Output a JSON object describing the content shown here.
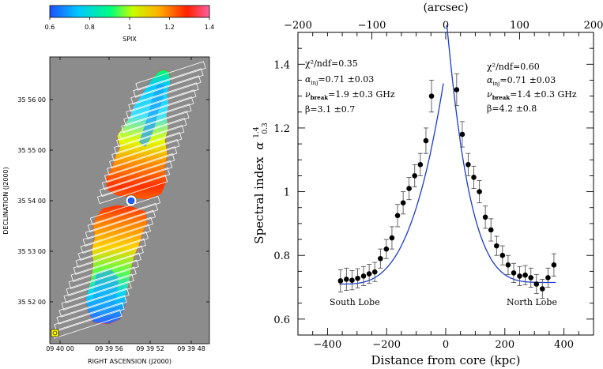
{
  "chart_data": [
    {
      "type": "heatmap",
      "colorbar": {
        "label": "SPIX",
        "ticks": [
          "0.6",
          "0.8",
          "1",
          "1.2",
          "1.4"
        ],
        "range": [
          0.6,
          1.4
        ],
        "colors": [
          "#1e50ff",
          "#00c8ff",
          "#00ff80",
          "#c8ff00",
          "#ffb000",
          "#ff2000",
          "#ff60a0"
        ]
      },
      "ylabel": "DECLINATION  (J2000)",
      "xlabel": "RIGHT ASCENSION  (J2000)",
      "yticks": [
        "35 56 00",
        "35 55 00",
        "35 54 00",
        "35 53 00",
        "35 52 00"
      ],
      "xticks": [
        "09 40 00",
        "09 39 56",
        "09 39 52",
        "09 39 48"
      ],
      "background_color": "#8c8c8c"
    },
    {
      "type": "scatter",
      "xlabel": "Distance from core (kpc)",
      "ylabel_text": "Spectral index",
      "ylabel_symbol": "α",
      "ylabel_sup": "1.4",
      "ylabel_sub": "0.3",
      "top_axis_label": "(arcsec)",
      "xlim": [
        -500,
        500
      ],
      "ylim": [
        0.55,
        1.5
      ],
      "xticks": [
        -400,
        -200,
        0,
        200,
        400
      ],
      "yticks": [
        0.6,
        0.8,
        1,
        1.2,
        1.4
      ],
      "ytick_labels": [
        "0.6",
        "0.8",
        "1",
        "1.2",
        "1.4"
      ],
      "top_xlim": [
        -200,
        200
      ],
      "top_xticks": [
        -200,
        -100,
        0,
        100,
        200
      ],
      "lobes": [
        {
          "name": "South Lobe",
          "fit": {
            "chi2": "χ²/ndf=0.35",
            "alpha_inj": "=0.71 ±0.03",
            "nu_break": "=1.9 ±0.3 GHz",
            "beta": "β=3.1 ±0.7"
          },
          "points": [
            {
              "x": -356,
              "y": 0.72,
              "err": 0.035
            },
            {
              "x": -336,
              "y": 0.725,
              "err": 0.035
            },
            {
              "x": -317,
              "y": 0.722,
              "err": 0.03
            },
            {
              "x": -298,
              "y": 0.728,
              "err": 0.03
            },
            {
              "x": -278,
              "y": 0.735,
              "err": 0.03
            },
            {
              "x": -259,
              "y": 0.742,
              "err": 0.03
            },
            {
              "x": -240,
              "y": 0.748,
              "err": 0.03
            },
            {
              "x": -221,
              "y": 0.79,
              "err": 0.03
            },
            {
              "x": -201,
              "y": 0.82,
              "err": 0.03
            },
            {
              "x": -182,
              "y": 0.855,
              "err": 0.035
            },
            {
              "x": -163,
              "y": 0.925,
              "err": 0.035
            },
            {
              "x": -144,
              "y": 0.965,
              "err": 0.035
            },
            {
              "x": -124,
              "y": 1.01,
              "err": 0.035
            },
            {
              "x": -105,
              "y": 1.05,
              "err": 0.035
            },
            {
              "x": -86,
              "y": 1.085,
              "err": 0.035
            },
            {
              "x": -67,
              "y": 1.16,
              "err": 0.04
            },
            {
              "x": -48,
              "y": 1.3,
              "err": 0.05
            }
          ]
        },
        {
          "name": "North Lobe",
          "fit": {
            "chi2": "χ²/ndf=0.60",
            "alpha_inj": "=0.71 ±0.03",
            "nu_break": "=1.4 ±0.3 GHz",
            "beta": "β=4.2 ±0.8"
          },
          "points": [
            {
              "x": 37,
              "y": 1.32,
              "err": 0.05
            },
            {
              "x": 56,
              "y": 1.18,
              "err": 0.04
            },
            {
              "x": 76,
              "y": 1.085,
              "err": 0.035
            },
            {
              "x": 95,
              "y": 1.045,
              "err": 0.035
            },
            {
              "x": 114,
              "y": 1.0,
              "err": 0.035
            },
            {
              "x": 134,
              "y": 0.92,
              "err": 0.035
            },
            {
              "x": 153,
              "y": 0.88,
              "err": 0.035
            },
            {
              "x": 172,
              "y": 0.83,
              "err": 0.03
            },
            {
              "x": 192,
              "y": 0.8,
              "err": 0.03
            },
            {
              "x": 211,
              "y": 0.77,
              "err": 0.03
            },
            {
              "x": 230,
              "y": 0.745,
              "err": 0.03
            },
            {
              "x": 250,
              "y": 0.735,
              "err": 0.03
            },
            {
              "x": 269,
              "y": 0.738,
              "err": 0.03
            },
            {
              "x": 288,
              "y": 0.73,
              "err": 0.03
            },
            {
              "x": 307,
              "y": 0.71,
              "err": 0.03
            },
            {
              "x": 327,
              "y": 0.695,
              "err": 0.03
            },
            {
              "x": 346,
              "y": 0.73,
              "err": 0.03
            },
            {
              "x": 366,
              "y": 0.77,
              "err": 0.035
            }
          ]
        }
      ],
      "fit_line_color": "#1a3ccc",
      "point_color": "#000000"
    }
  ]
}
